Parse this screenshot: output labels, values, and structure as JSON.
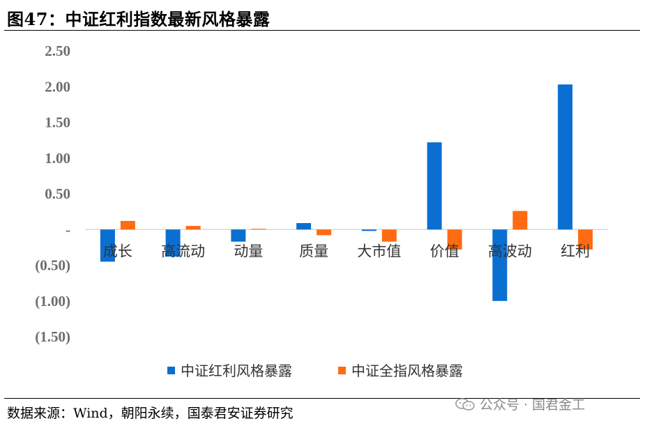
{
  "title": "图47：中证红利指数最新风格暴露",
  "source": "数据来源：Wind，朝阳永续，国泰君安证券研究",
  "watermark": {
    "icon": "wechat-icon",
    "text": "公众号 · 国君金工"
  },
  "chart_data": {
    "type": "bar",
    "categories": [
      "成长",
      "高流动",
      "动量",
      "质量",
      "大市值",
      "价值",
      "高波动",
      "红利"
    ],
    "series": [
      {
        "name": "中证红利风格暴露",
        "color": "#0a6fd1",
        "values": [
          -0.45,
          -0.38,
          -0.17,
          0.09,
          -0.02,
          1.22,
          -1.0,
          2.03
        ]
      },
      {
        "name": "中证全指风格暴露",
        "color": "#ff6b12",
        "values": [
          0.12,
          0.05,
          0.01,
          -0.08,
          -0.17,
          -0.28,
          0.26,
          -0.28
        ]
      }
    ],
    "yticks": [
      "2.50",
      "2.00",
      "1.50",
      "1.00",
      "0.50",
      "-",
      "(0.50)",
      "(1.00)",
      "(1.50)"
    ],
    "ylim": [
      -1.5,
      2.5
    ],
    "grid": false,
    "legend_position": "bottom"
  }
}
